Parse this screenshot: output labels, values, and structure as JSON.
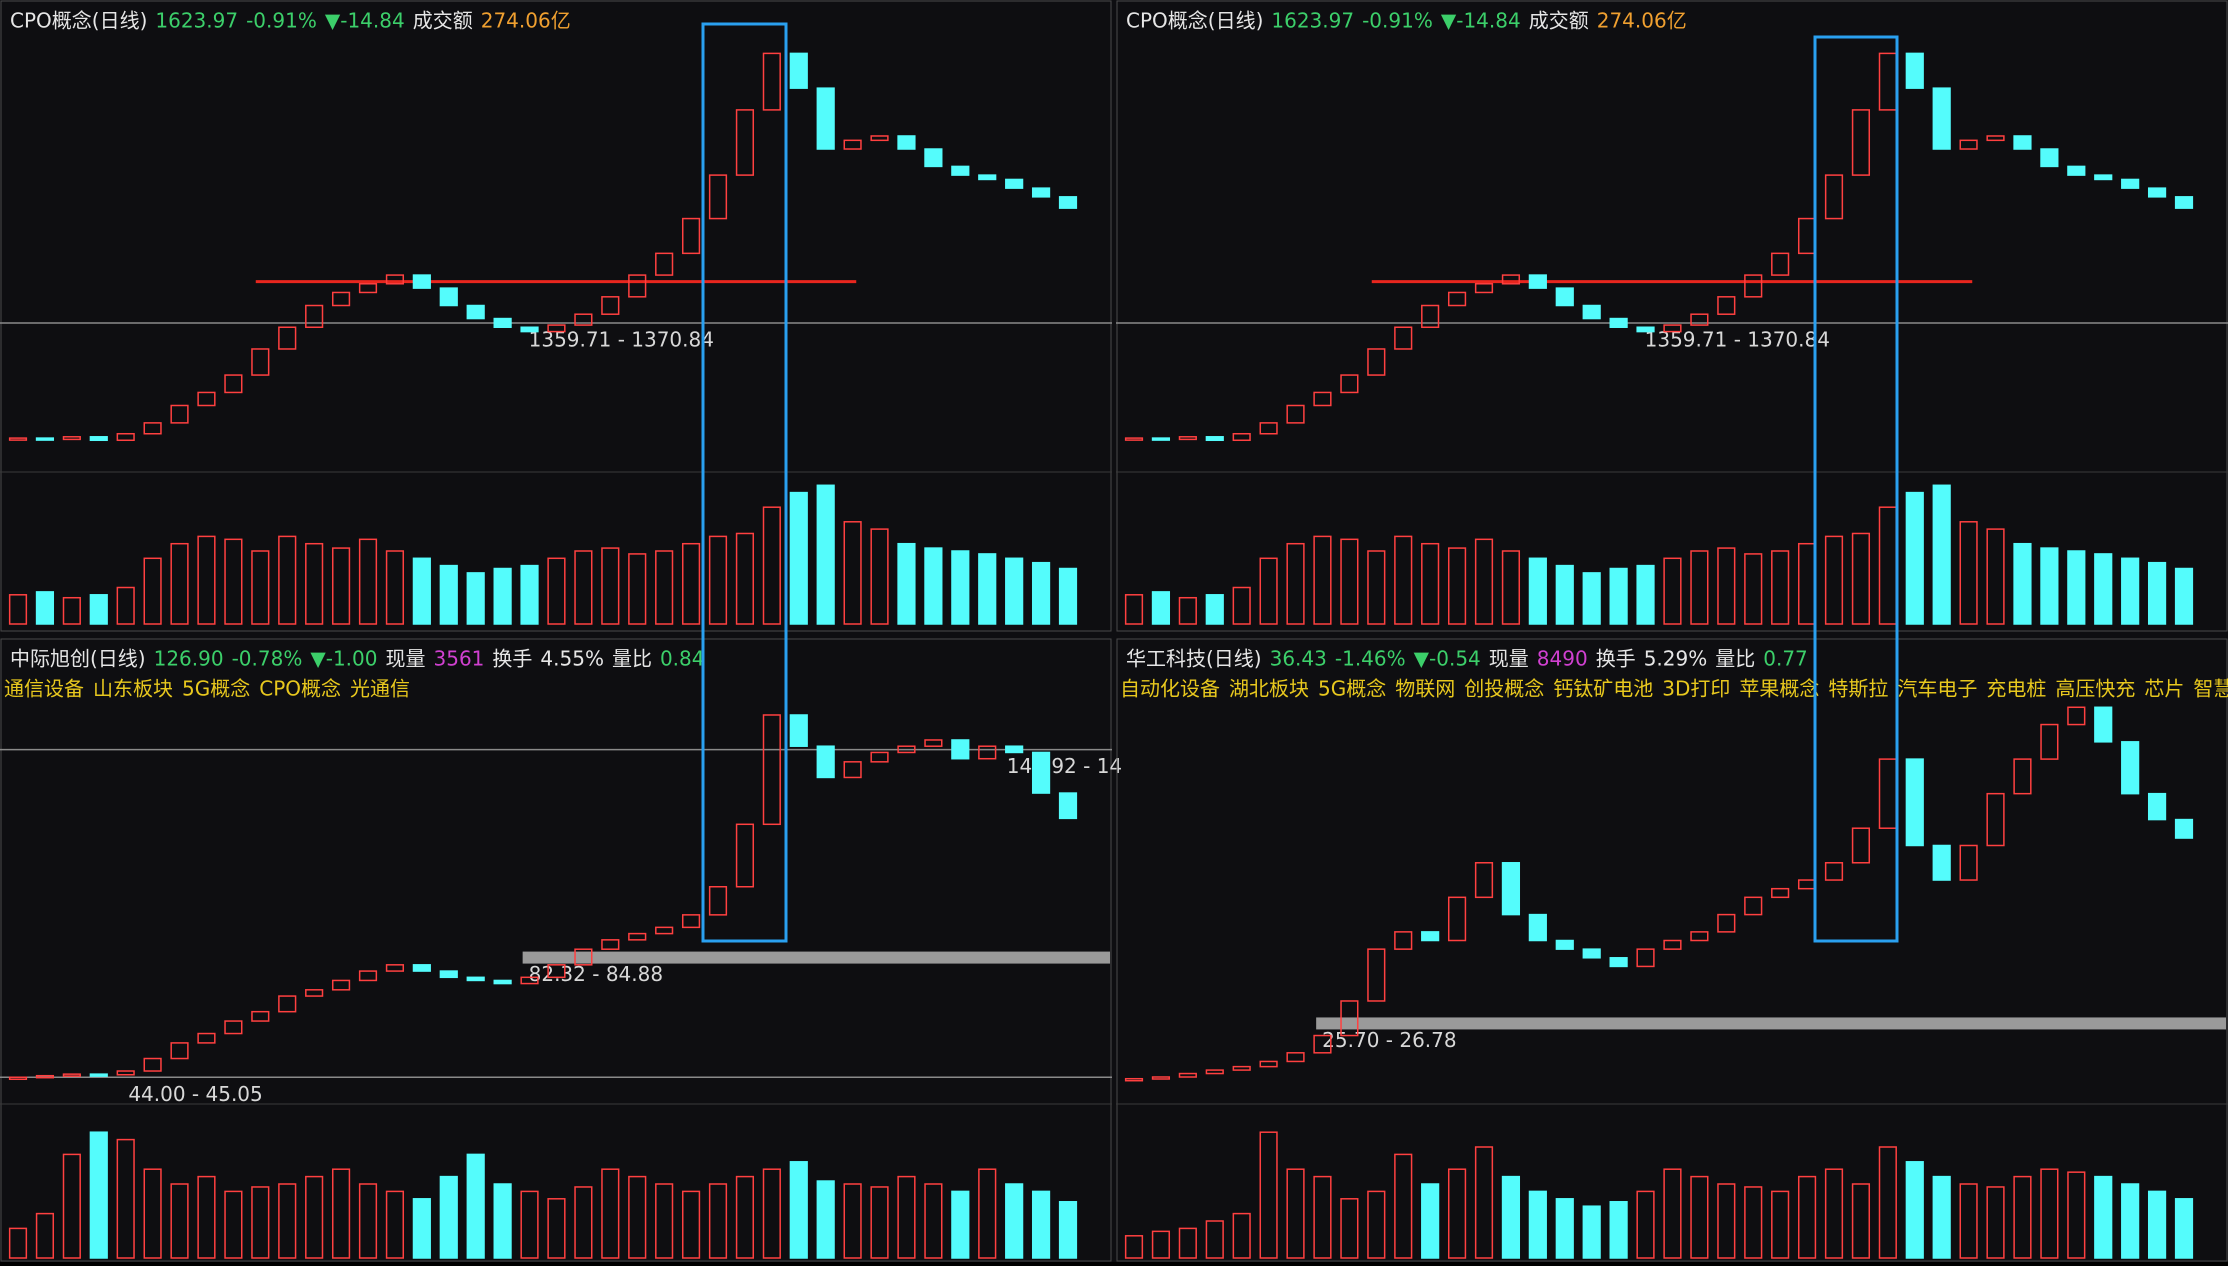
{
  "panels": [
    {
      "type": "candlestick",
      "header": [
        {
          "text": "CPO概念(日线)",
          "color": "#e6e6e6"
        },
        {
          "text": "1623.97",
          "color": "#3ccf6a"
        },
        {
          "text": "-0.91%",
          "color": "#3ccf6a"
        },
        {
          "text": "▼-14.84",
          "color": "#3ccf6a"
        },
        {
          "text": "成交额",
          "color": "#e6e6e6"
        },
        {
          "text": "274.06亿",
          "color": "#f0a030"
        }
      ],
      "close": [
        1095,
        1092,
        1098,
        1090,
        1105,
        1130,
        1170,
        1200,
        1240,
        1300,
        1350,
        1400,
        1430,
        1450,
        1470,
        1440,
        1400,
        1370,
        1350,
        1340,
        1355,
        1380,
        1420,
        1470,
        1520,
        1600,
        1700,
        1850,
        1980,
        1900,
        1760,
        1780,
        1790,
        1760,
        1720,
        1700,
        1690,
        1670,
        1650,
        1623.97
      ],
      "volume": [
        20,
        22,
        18,
        20,
        25,
        45,
        55,
        60,
        58,
        50,
        60,
        55,
        52,
        58,
        50,
        45,
        40,
        35,
        38,
        40,
        45,
        50,
        52,
        48,
        50,
        55,
        60,
        62,
        80,
        90,
        95,
        70,
        65,
        55,
        52,
        50,
        48,
        45,
        42,
        38
      ],
      "ylim": [
        1040,
        2020
      ],
      "vlim": [
        0,
        100
      ],
      "levels": [
        {
          "value": 1359.71,
          "label": "1359.71 - 1370.84",
          "band": false
        }
      ],
      "hline": {
        "value": 1455,
        "color": "#e8261e"
      }
    },
    {
      "type": "candlestick",
      "header": [
        {
          "text": "CPO概念(日线)",
          "color": "#e6e6e6"
        },
        {
          "text": "1623.97",
          "color": "#3ccf6a"
        },
        {
          "text": "-0.91%",
          "color": "#3ccf6a"
        },
        {
          "text": "▼-14.84",
          "color": "#3ccf6a"
        },
        {
          "text": "成交额",
          "color": "#e6e6e6"
        },
        {
          "text": "274.06亿",
          "color": "#f0a030"
        }
      ],
      "close": [
        1095,
        1092,
        1098,
        1090,
        1105,
        1130,
        1170,
        1200,
        1240,
        1300,
        1350,
        1400,
        1430,
        1450,
        1470,
        1440,
        1400,
        1370,
        1350,
        1340,
        1355,
        1380,
        1420,
        1470,
        1520,
        1600,
        1700,
        1850,
        1980,
        1900,
        1760,
        1780,
        1790,
        1760,
        1720,
        1700,
        1690,
        1670,
        1650,
        1623.97
      ],
      "volume": [
        20,
        22,
        18,
        20,
        25,
        45,
        55,
        60,
        58,
        50,
        60,
        55,
        52,
        58,
        50,
        45,
        40,
        35,
        38,
        40,
        45,
        50,
        52,
        48,
        50,
        55,
        60,
        62,
        80,
        90,
        95,
        70,
        65,
        55,
        52,
        50,
        48,
        45,
        42,
        38
      ],
      "ylim": [
        1040,
        2020
      ],
      "vlim": [
        0,
        100
      ],
      "levels": [
        {
          "value": 1359.71,
          "label": "1359.71 - 1370.84",
          "band": false
        }
      ],
      "hline": {
        "value": 1455,
        "color": "#e8261e"
      }
    },
    {
      "type": "candlestick",
      "header": [
        {
          "text": "中际旭创(日线)",
          "color": "#e6e6e6"
        },
        {
          "text": "126.90",
          "color": "#3ccf6a"
        },
        {
          "text": "-0.78%",
          "color": "#3ccf6a"
        },
        {
          "text": "▼-1.00",
          "color": "#3ccf6a"
        },
        {
          "text": "现量",
          "color": "#e6e6e6"
        },
        {
          "text": "3561",
          "color": "#d040d0"
        },
        {
          "text": "换手",
          "color": "#e6e6e6"
        },
        {
          "text": "4.55%",
          "color": "#e6e6e6"
        },
        {
          "text": "量比",
          "color": "#e6e6e6"
        },
        {
          "text": "0.84",
          "color": "#3ccf6a"
        }
      ],
      "tags": [
        "通信设备",
        "山东板块",
        "5G概念",
        "CPO概念",
        "光通信"
      ],
      "close": [
        44,
        44.5,
        45,
        44.8,
        46,
        50,
        55,
        58,
        62,
        65,
        70,
        72,
        75,
        78,
        80,
        78,
        76,
        75,
        74,
        76,
        80,
        85,
        88,
        90,
        92,
        96,
        105,
        125,
        160,
        150,
        140,
        145,
        148,
        150,
        152,
        146,
        150,
        148,
        135,
        126.9
      ],
      "volume": [
        20,
        30,
        70,
        85,
        80,
        60,
        50,
        55,
        45,
        48,
        50,
        55,
        60,
        50,
        45,
        40,
        55,
        70,
        50,
        45,
        40,
        48,
        60,
        55,
        50,
        45,
        50,
        55,
        60,
        65,
        52,
        50,
        48,
        55,
        50,
        45,
        60,
        50,
        45,
        38
      ],
      "ylim": [
        38,
        168
      ],
      "vlim": [
        0,
        100
      ],
      "levels": [
        {
          "value": 148.92,
          "label": "148.92 - 14",
          "band": false
        },
        {
          "value": 82.32,
          "label": "82.32 - 84.88",
          "band": true
        },
        {
          "value": 44.0,
          "label": "44.00 - 45.05",
          "band": false
        }
      ]
    },
    {
      "type": "candlestick",
      "header": [
        {
          "text": "华工科技(日线)",
          "color": "#e6e6e6"
        },
        {
          "text": "36.43",
          "color": "#3ccf6a"
        },
        {
          "text": "-1.46%",
          "color": "#3ccf6a"
        },
        {
          "text": "▼-0.54",
          "color": "#3ccf6a"
        },
        {
          "text": "现量",
          "color": "#e6e6e6"
        },
        {
          "text": "8490",
          "color": "#d040d0"
        },
        {
          "text": "换手",
          "color": "#e6e6e6"
        },
        {
          "text": "5.29%",
          "color": "#e6e6e6"
        },
        {
          "text": "量比",
          "color": "#e6e6e6"
        },
        {
          "text": "0.77",
          "color": "#3ccf6a"
        }
      ],
      "tags": [
        "自动化设备",
        "湖北板块",
        "5G概念",
        "物联网",
        "创投概念",
        "钙钛矿电池",
        "3D打印",
        "苹果概念",
        "特斯拉",
        "汽车电子",
        "充电桩",
        "高压快充",
        "芯片",
        "智慧城"
      ],
      "close": [
        22.5,
        22.6,
        22.8,
        23,
        23.2,
        23.5,
        24,
        25,
        27,
        30,
        31,
        30.5,
        33,
        35,
        32,
        30.5,
        30,
        29.5,
        29,
        30,
        30.5,
        31,
        32,
        33,
        33.5,
        34,
        35,
        37,
        41,
        36,
        34,
        36,
        39,
        41,
        43,
        44,
        42,
        39,
        37.5,
        36.43
      ],
      "volume": [
        15,
        18,
        20,
        25,
        30,
        85,
        60,
        55,
        40,
        45,
        70,
        50,
        60,
        75,
        55,
        45,
        40,
        35,
        38,
        45,
        60,
        55,
        50,
        48,
        45,
        55,
        60,
        50,
        75,
        65,
        55,
        50,
        48,
        55,
        60,
        58,
        55,
        50,
        45,
        40
      ],
      "ylim": [
        21.5,
        45
      ],
      "vlim": [
        0,
        100
      ],
      "levels": [
        {
          "value": 25.7,
          "label": "25.70 - 26.78",
          "band": true
        }
      ]
    }
  ]
}
